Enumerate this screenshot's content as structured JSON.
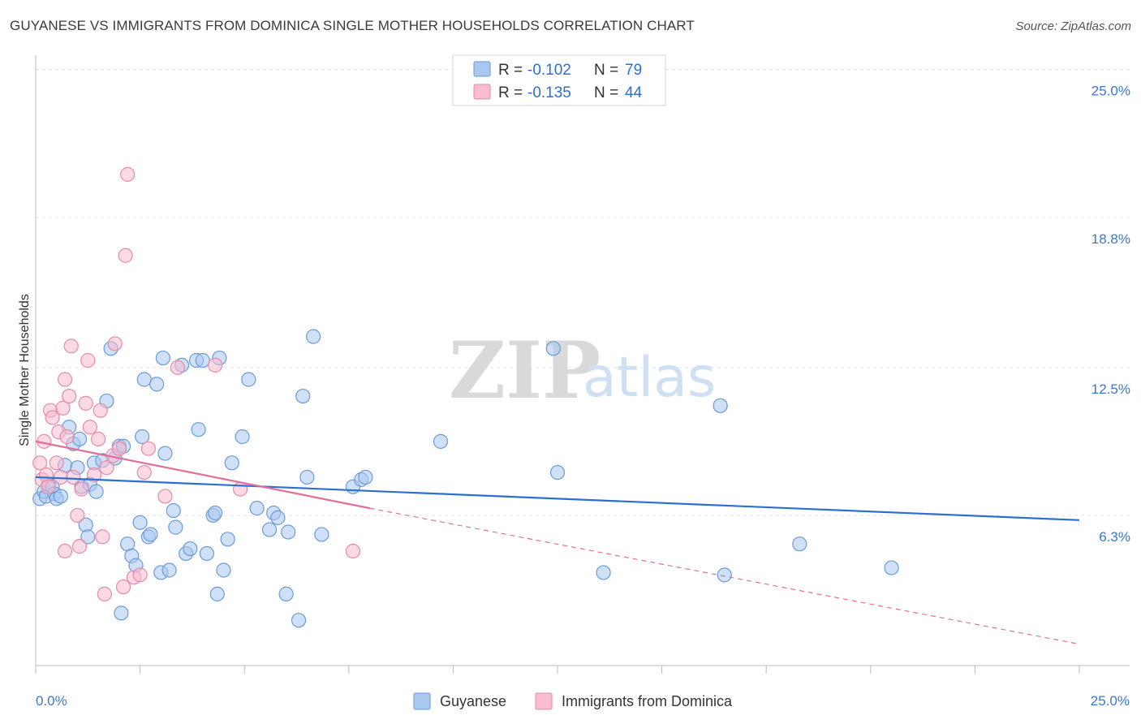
{
  "header": {
    "title": "GUYANESE VS IMMIGRANTS FROM DOMINICA SINGLE MOTHER HOUSEHOLDS CORRELATION CHART",
    "source": "Source: ZipAtlas.com"
  },
  "watermark": {
    "zip": "ZIP",
    "atlas": "atlas"
  },
  "legend": {
    "items": [
      {
        "r_label": "R =",
        "r_value": "-0.102",
        "n_label": "N =",
        "n_value": "79",
        "color": "#a9c8f0",
        "stroke": "#6a9ad8"
      },
      {
        "r_label": "R =",
        "r_value": "-0.135",
        "n_label": "N =",
        "n_value": "44",
        "color": "#f7bcd0",
        "stroke": "#e68aa8"
      }
    ]
  },
  "bottom_legend": [
    {
      "label": "Guyanese",
      "color": "#a9c8f0",
      "stroke": "#6a9ad8"
    },
    {
      "label": "Immigrants from Dominica",
      "color": "#f7bcd0",
      "stroke": "#e68aa8"
    }
  ],
  "chart_data": {
    "type": "scatter",
    "title": "GUYANESE VS IMMIGRANTS FROM DOMINICA SINGLE MOTHER HOUSEHOLDS CORRELATION CHART",
    "xlabel": "",
    "ylabel": "Single Mother Households",
    "xlim": [
      0,
      25
    ],
    "ylim": [
      0,
      25.6
    ],
    "x_tick_labels": [
      "0.0%",
      "25.0%"
    ],
    "y_ticks": [
      {
        "value": 6.3,
        "label": "6.3%"
      },
      {
        "value": 12.5,
        "label": "12.5%"
      },
      {
        "value": 18.8,
        "label": "18.8%"
      },
      {
        "value": 25.0,
        "label": "25.0%"
      }
    ],
    "grid": true,
    "legend_position": "top-center",
    "series": [
      {
        "name": "Guyanese",
        "color": "#6a9ad8",
        "fill": "#a9c8f0",
        "trend_color": "#2c6fcf",
        "trend": {
          "x": [
            0,
            25
          ],
          "y": [
            7.9,
            6.1
          ]
        },
        "points": [
          [
            0.1,
            7.0
          ],
          [
            0.2,
            7.3
          ],
          [
            0.25,
            7.1
          ],
          [
            0.3,
            7.6
          ],
          [
            0.4,
            7.5
          ],
          [
            0.45,
            7.2
          ],
          [
            0.5,
            7.0
          ],
          [
            0.6,
            7.1
          ],
          [
            0.7,
            8.4
          ],
          [
            0.8,
            10.0
          ],
          [
            0.9,
            9.3
          ],
          [
            1.0,
            8.3
          ],
          [
            1.05,
            9.5
          ],
          [
            1.1,
            7.5
          ],
          [
            1.2,
            5.9
          ],
          [
            1.25,
            5.4
          ],
          [
            1.3,
            7.6
          ],
          [
            1.4,
            8.5
          ],
          [
            1.45,
            7.3
          ],
          [
            1.6,
            8.6
          ],
          [
            1.7,
            11.1
          ],
          [
            1.8,
            13.3
          ],
          [
            1.9,
            8.7
          ],
          [
            2.0,
            9.2
          ],
          [
            2.05,
            2.2
          ],
          [
            2.1,
            9.2
          ],
          [
            2.2,
            5.1
          ],
          [
            2.3,
            4.6
          ],
          [
            2.4,
            4.2
          ],
          [
            2.5,
            6.0
          ],
          [
            2.55,
            9.6
          ],
          [
            2.6,
            12.0
          ],
          [
            2.7,
            5.4
          ],
          [
            2.75,
            5.5
          ],
          [
            2.9,
            11.8
          ],
          [
            3.0,
            3.9
          ],
          [
            3.05,
            12.9
          ],
          [
            3.1,
            8.9
          ],
          [
            3.2,
            4.0
          ],
          [
            3.3,
            6.5
          ],
          [
            3.35,
            5.8
          ],
          [
            3.5,
            12.6
          ],
          [
            3.6,
            4.7
          ],
          [
            3.7,
            4.9
          ],
          [
            3.85,
            12.8
          ],
          [
            3.9,
            9.9
          ],
          [
            4.0,
            12.8
          ],
          [
            4.1,
            4.7
          ],
          [
            4.25,
            6.3
          ],
          [
            4.3,
            6.4
          ],
          [
            4.35,
            3.0
          ],
          [
            4.4,
            12.9
          ],
          [
            4.5,
            4.0
          ],
          [
            4.6,
            5.3
          ],
          [
            4.7,
            8.5
          ],
          [
            4.95,
            9.6
          ],
          [
            5.1,
            12.0
          ],
          [
            5.3,
            6.6
          ],
          [
            5.6,
            5.7
          ],
          [
            5.7,
            6.4
          ],
          [
            5.8,
            6.2
          ],
          [
            6.0,
            3.0
          ],
          [
            6.05,
            5.6
          ],
          [
            6.3,
            1.9
          ],
          [
            6.4,
            11.3
          ],
          [
            6.5,
            7.9
          ],
          [
            6.65,
            13.8
          ],
          [
            6.85,
            5.5
          ],
          [
            7.6,
            7.5
          ],
          [
            7.8,
            7.8
          ],
          [
            7.9,
            7.9
          ],
          [
            9.7,
            9.4
          ],
          [
            12.4,
            13.3
          ],
          [
            12.5,
            8.1
          ],
          [
            13.6,
            3.9
          ],
          [
            16.4,
            10.9
          ],
          [
            16.5,
            3.8
          ],
          [
            18.3,
            5.1
          ],
          [
            20.5,
            4.1
          ]
        ]
      },
      {
        "name": "Immigrants from Dominica",
        "color": "#e68aa8",
        "fill": "#f7bcd0",
        "trend_color": "#e0709a",
        "trend": {
          "x": [
            0,
            8.0
          ],
          "y": [
            9.4,
            6.6
          ]
        },
        "trend_extension": {
          "x": [
            8.0,
            25
          ],
          "y": [
            6.6,
            0.9
          ]
        },
        "points": [
          [
            0.1,
            8.5
          ],
          [
            0.15,
            7.8
          ],
          [
            0.2,
            9.4
          ],
          [
            0.25,
            8.0
          ],
          [
            0.3,
            7.5
          ],
          [
            0.35,
            10.7
          ],
          [
            0.4,
            10.4
          ],
          [
            0.5,
            8.5
          ],
          [
            0.55,
            9.8
          ],
          [
            0.6,
            7.9
          ],
          [
            0.65,
            10.8
          ],
          [
            0.7,
            12.0
          ],
          [
            0.75,
            9.6
          ],
          [
            0.8,
            11.3
          ],
          [
            0.85,
            13.4
          ],
          [
            0.9,
            7.9
          ],
          [
            1.0,
            6.3
          ],
          [
            1.05,
            5.0
          ],
          [
            1.1,
            7.4
          ],
          [
            1.2,
            11.0
          ],
          [
            1.25,
            12.8
          ],
          [
            1.3,
            10.0
          ],
          [
            1.4,
            8.0
          ],
          [
            1.5,
            9.5
          ],
          [
            1.55,
            10.7
          ],
          [
            1.6,
            5.4
          ],
          [
            1.65,
            3.0
          ],
          [
            1.7,
            8.3
          ],
          [
            1.85,
            8.8
          ],
          [
            1.9,
            13.5
          ],
          [
            2.0,
            9.1
          ],
          [
            2.1,
            3.3
          ],
          [
            2.15,
            17.2
          ],
          [
            2.2,
            20.6
          ],
          [
            2.35,
            3.7
          ],
          [
            2.5,
            3.8
          ],
          [
            2.6,
            8.1
          ],
          [
            2.7,
            9.1
          ],
          [
            3.1,
            7.1
          ],
          [
            3.4,
            12.5
          ],
          [
            4.3,
            12.6
          ],
          [
            4.9,
            7.4
          ],
          [
            7.6,
            4.8
          ],
          [
            0.7,
            4.8
          ]
        ]
      }
    ]
  }
}
